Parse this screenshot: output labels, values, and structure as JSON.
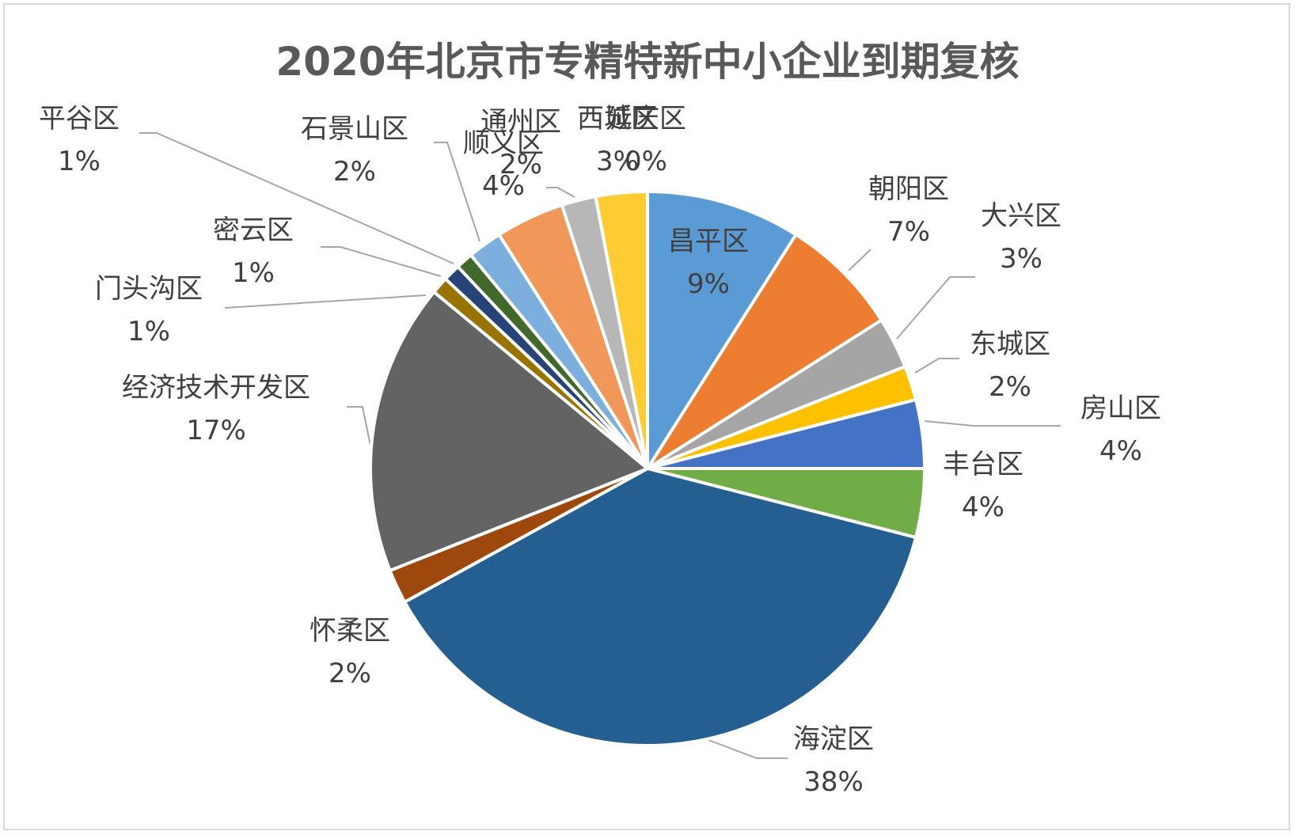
{
  "chart_data": {
    "type": "pie",
    "title": "2020年北京市专精特新中小企业到期复核",
    "slices": [
      {
        "name": "昌平区",
        "value": 9,
        "label": "9%",
        "color": "#5b9bd5"
      },
      {
        "name": "朝阳区",
        "value": 7,
        "label": "7%",
        "color": "#ed7d31"
      },
      {
        "name": "大兴区",
        "value": 3,
        "label": "3%",
        "color": "#a5a5a5"
      },
      {
        "name": "东城区",
        "value": 2,
        "label": "2%",
        "color": "#ffc000"
      },
      {
        "name": "房山区",
        "value": 4,
        "label": "4%",
        "color": "#4472c4"
      },
      {
        "name": "丰台区",
        "value": 4,
        "label": "4%",
        "color": "#70ad47"
      },
      {
        "name": "海淀区",
        "value": 38,
        "label": "38%",
        "color": "#255e91"
      },
      {
        "name": "怀柔区",
        "value": 2,
        "label": "2%",
        "color": "#9e480e"
      },
      {
        "name": "经济技术开发区",
        "value": 17,
        "label": "17%",
        "color": "#636363"
      },
      {
        "name": "门头沟区",
        "value": 1,
        "label": "1%",
        "color": "#997300"
      },
      {
        "name": "密云区",
        "value": 1,
        "label": "1%",
        "color": "#264478"
      },
      {
        "name": "平谷区",
        "value": 1,
        "label": "1%",
        "color": "#43682b"
      },
      {
        "name": "石景山区",
        "value": 2,
        "label": "2%",
        "color": "#7cafdd"
      },
      {
        "name": "顺义区",
        "value": 4,
        "label": "4%",
        "color": "#f1975a"
      },
      {
        "name": "通州区",
        "value": 2,
        "label": "2%",
        "color": "#b7b7b7"
      },
      {
        "name": "西城区",
        "value": 3,
        "label": "3%",
        "color": "#ffcd33"
      },
      {
        "name": "延庆区",
        "value": 0,
        "label": "0%",
        "color": "#698ed0"
      }
    ]
  }
}
